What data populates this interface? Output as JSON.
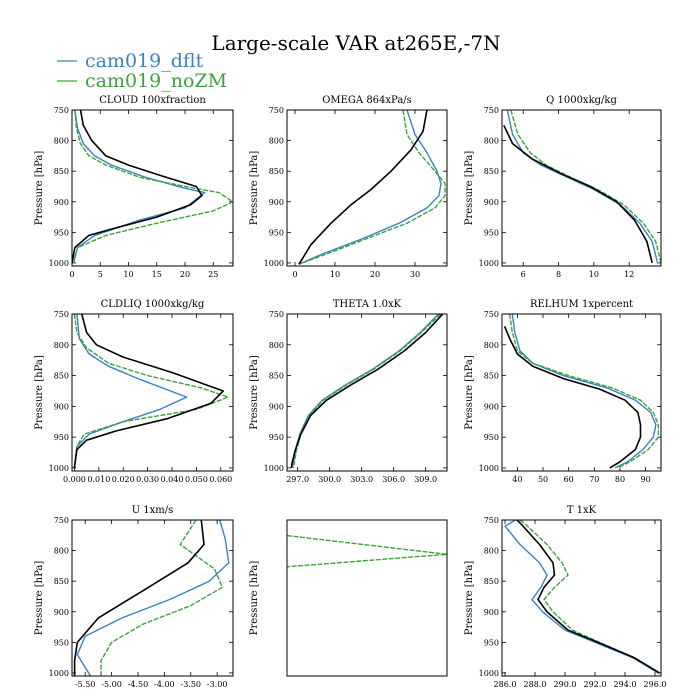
{
  "title": "Large-scale VAR at265E,-7N",
  "legend": [
    {
      "label": "cam019_dflt",
      "color": "#3a82c4"
    },
    {
      "label": "cam019_noZM",
      "color": "#3ca33c"
    }
  ],
  "reference_color": "#000000",
  "chart_data": [
    {
      "type": "line",
      "title": "CLOUD  100xfraction",
      "ylabel": "Pressure [hPa]",
      "xlim": [
        0,
        28.5
      ],
      "ylim": [
        1005,
        750
      ],
      "xticks": [
        0,
        5,
        10,
        15,
        20,
        25
      ],
      "xticklabels": [
        "0",
        "5",
        "10",
        "15",
        "20",
        "25"
      ],
      "yticks": [
        750,
        800,
        850,
        900,
        950,
        1000
      ],
      "yticklabels": [
        "750",
        "800",
        "850",
        "900",
        "950",
        "1000"
      ],
      "series": [
        {
          "name": "cam019_dflt",
          "x": [
            0.5,
            1,
            2,
            4,
            7,
            13,
            20,
            23.5,
            20,
            12,
            4,
            1,
            0.5,
            0.3
          ],
          "y": [
            750,
            780,
            805,
            825,
            840,
            860,
            878,
            885,
            910,
            930,
            955,
            975,
            990,
            1000
          ]
        },
        {
          "name": "cam019_noZM",
          "x": [
            0.5,
            0.8,
            1.5,
            3,
            6,
            12,
            20,
            26,
            28.5,
            25,
            15,
            6,
            1,
            0.3
          ],
          "y": [
            750,
            780,
            805,
            825,
            840,
            860,
            875,
            885,
            900,
            915,
            935,
            955,
            975,
            1000
          ]
        },
        {
          "x": [
            1.5,
            2,
            3.5,
            6,
            10,
            16,
            22,
            23,
            21,
            15,
            8,
            3,
            0.5,
            0
          ],
          "y": [
            750,
            775,
            800,
            825,
            840,
            858,
            875,
            890,
            905,
            925,
            942,
            955,
            975,
            1000
          ]
        }
      ]
    },
    {
      "type": "line",
      "title": "OMEGA  864xPa/s",
      "ylabel": "Pressure [hPa]",
      "xlim": [
        -2,
        38
      ],
      "ylim": [
        1005,
        750
      ],
      "xticks": [
        0,
        10,
        20,
        30
      ],
      "xticklabels": [
        "0",
        "10",
        "20",
        "30"
      ],
      "yticks": [
        750,
        800,
        850,
        900,
        950,
        1000
      ],
      "yticklabels": [
        "750",
        "800",
        "850",
        "900",
        "950",
        "1000"
      ],
      "series": [
        {
          "name": "cam019_dflt",
          "x": [
            28,
            30,
            33,
            35.5,
            36.5,
            36,
            33,
            26,
            17,
            7,
            1
          ],
          "y": [
            750,
            790,
            820,
            850,
            870,
            890,
            910,
            935,
            960,
            985,
            1002
          ]
        },
        {
          "name": "cam019_noZM",
          "x": [
            27,
            28,
            31,
            35,
            37.5,
            37.5,
            35,
            28,
            18,
            8,
            1
          ],
          "y": [
            750,
            790,
            820,
            850,
            870,
            890,
            910,
            935,
            960,
            985,
            1002
          ]
        },
        {
          "x": [
            33,
            32,
            29,
            24,
            19,
            14,
            9,
            4,
            1
          ],
          "y": [
            750,
            785,
            815,
            850,
            880,
            905,
            935,
            970,
            1002
          ]
        }
      ]
    },
    {
      "type": "line",
      "title": "Q  1000xkg/kg",
      "ylabel": "Pressure [hPa]",
      "xlim": [
        4.8,
        13.8
      ],
      "ylim": [
        1005,
        750
      ],
      "xticks": [
        6,
        8,
        10,
        12
      ],
      "xticklabels": [
        "6",
        "8",
        "10",
        "12"
      ],
      "yticks": [
        750,
        800,
        850,
        900,
        950,
        1000
      ],
      "yticklabels": [
        "750",
        "800",
        "850",
        "900",
        "950",
        "1000"
      ],
      "series": [
        {
          "name": "cam019_dflt",
          "x": [
            5.1,
            5.4,
            6,
            7,
            8.5,
            10,
            11.5,
            12.6,
            13.3,
            13.6
          ],
          "y": [
            750,
            790,
            820,
            840,
            860,
            880,
            905,
            935,
            965,
            1000
          ]
        },
        {
          "name": "cam019_noZM",
          "x": [
            5.3,
            5.7,
            6.4,
            7.3,
            8.7,
            10.2,
            11.7,
            12.8,
            13.5,
            13.8
          ],
          "y": [
            750,
            790,
            820,
            840,
            860,
            880,
            905,
            935,
            965,
            1000
          ]
        },
        {
          "x": [
            4.9,
            5.4,
            6.5,
            8.2,
            9.8,
            11.3,
            12.3,
            13,
            13.3
          ],
          "y": [
            775,
            805,
            830,
            855,
            875,
            900,
            930,
            965,
            1000
          ]
        }
      ]
    },
    {
      "type": "line",
      "title": "CLDLIQ  1000xkg/kg",
      "ylabel": "Pressure [hPa]",
      "xlim": [
        -0.001,
        0.065
      ],
      "ylim": [
        1005,
        750
      ],
      "xticks": [
        0,
        0.01,
        0.02,
        0.03,
        0.04,
        0.05,
        0.06
      ],
      "xticklabels": [
        "0.000",
        "0.010",
        "0.020",
        "0.030",
        "0.040",
        "0.050",
        "0.060"
      ],
      "yticks": [
        750,
        800,
        850,
        900,
        950,
        1000
      ],
      "yticklabels": [
        "750",
        "800",
        "850",
        "900",
        "950",
        "1000"
      ],
      "series": [
        {
          "name": "cam019_dflt",
          "x": [
            0.001,
            0.002,
            0.006,
            0.014,
            0.026,
            0.046,
            0.035,
            0.02,
            0.006,
            0.001,
            0
          ],
          "y": [
            750,
            790,
            815,
            835,
            855,
            885,
            905,
            925,
            945,
            965,
            1000
          ]
        },
        {
          "name": "cam019_noZM",
          "x": [
            0,
            0.001,
            0.005,
            0.014,
            0.03,
            0.052,
            0.063,
            0.05,
            0.02,
            0.004,
            0.001,
            0
          ],
          "y": [
            750,
            780,
            805,
            830,
            850,
            870,
            885,
            905,
            925,
            945,
            965,
            1000
          ]
        },
        {
          "x": [
            0.003,
            0.005,
            0.009,
            0.02,
            0.04,
            0.061,
            0.056,
            0.038,
            0.017,
            0.005,
            0.001,
            0
          ],
          "y": [
            750,
            780,
            800,
            820,
            845,
            875,
            895,
            920,
            940,
            955,
            970,
            1000
          ]
        }
      ]
    },
    {
      "type": "line",
      "title": "THETA  1.0xK",
      "ylabel": "Pressure [hPa]",
      "xlim": [
        296,
        311
      ],
      "ylim": [
        1005,
        750
      ],
      "xticks": [
        297,
        300,
        303,
        306,
        309
      ],
      "xticklabels": [
        "297.0",
        "300.0",
        "303.0",
        "306.0",
        "309.0"
      ],
      "yticks": [
        750,
        800,
        850,
        900,
        950,
        1000
      ],
      "yticklabels": [
        "750",
        "800",
        "850",
        "900",
        "950",
        "1000"
      ],
      "series": [
        {
          "name": "cam019_dflt",
          "x": [
            310.2,
            308.5,
            306.5,
            304,
            301.5,
            299.3,
            298,
            297.2,
            296.8,
            296.6,
            296.5
          ],
          "y": [
            750,
            780,
            810,
            840,
            865,
            890,
            915,
            945,
            970,
            990,
            1000
          ]
        },
        {
          "name": "cam019_noZM",
          "x": [
            310.4,
            308.6,
            306.6,
            304.1,
            301.6,
            299.4,
            298.1,
            297.3,
            296.9,
            296.7,
            296.6
          ],
          "y": [
            750,
            780,
            810,
            840,
            865,
            890,
            915,
            945,
            970,
            990,
            1000
          ]
        },
        {
          "x": [
            310.6,
            309,
            307,
            304.5,
            302,
            299.7,
            298.2,
            297.3,
            296.8,
            296.5,
            296.4
          ],
          "y": [
            750,
            780,
            810,
            840,
            865,
            890,
            915,
            945,
            970,
            990,
            1000
          ]
        }
      ]
    },
    {
      "type": "line",
      "title": "RELHUM  1xpercent",
      "ylabel": "Pressure [hPa]",
      "xlim": [
        34,
        96
      ],
      "ylim": [
        1005,
        750
      ],
      "xticks": [
        40,
        50,
        60,
        70,
        80,
        90
      ],
      "xticklabels": [
        "40",
        "50",
        "60",
        "70",
        "80",
        "90"
      ],
      "yticks": [
        750,
        800,
        850,
        900,
        950,
        1000
      ],
      "yticklabels": [
        "750",
        "800",
        "850",
        "900",
        "950",
        "1000"
      ],
      "series": [
        {
          "name": "cam019_dflt",
          "x": [
            38,
            39,
            41,
            46,
            58,
            75,
            86,
            92,
            94,
            93,
            89,
            83,
            78
          ],
          "y": [
            750,
            780,
            810,
            830,
            850,
            870,
            890,
            910,
            930,
            950,
            970,
            990,
            1000
          ]
        },
        {
          "name": "cam019_noZM",
          "x": [
            37,
            38,
            40,
            46,
            60,
            77,
            88,
            93,
            95,
            95,
            91,
            84,
            79
          ],
          "y": [
            750,
            780,
            810,
            830,
            850,
            870,
            890,
            910,
            930,
            950,
            970,
            990,
            1000
          ]
        },
        {
          "x": [
            35,
            37,
            40,
            46,
            58,
            72,
            82,
            87,
            88,
            88,
            86,
            80,
            76
          ],
          "y": [
            770,
            790,
            815,
            835,
            855,
            872,
            890,
            910,
            930,
            950,
            970,
            990,
            1000
          ]
        }
      ]
    },
    {
      "type": "line",
      "title": "U  1xm/s",
      "ylabel": "Pressure [hPa]",
      "xlim": [
        -5.75,
        -2.7
      ],
      "ylim": [
        1005,
        750
      ],
      "xticks": [
        -5.5,
        -5,
        -4.5,
        -4,
        -3.5,
        -3
      ],
      "xticklabels": [
        "-5.50",
        "-5.00",
        "-4.50",
        "-4.00",
        "-3.50",
        "-3.00"
      ],
      "yticks": [
        750,
        800,
        850,
        900,
        950,
        1000
      ],
      "yticklabels": [
        "750",
        "800",
        "850",
        "900",
        "950",
        "1000"
      ],
      "series": [
        {
          "name": "cam019_dflt",
          "x": [
            -2.95,
            -2.85,
            -2.78,
            -3.15,
            -3.9,
            -4.8,
            -5.5,
            -5.65,
            -5.4
          ],
          "y": [
            750,
            780,
            820,
            850,
            880,
            910,
            940,
            970,
            1005
          ]
        },
        {
          "name": "cam019_noZM",
          "x": [
            -3.4,
            -3.7,
            -3.05,
            -2.9,
            -3.5,
            -4.4,
            -5.0,
            -5.2,
            -5.2
          ],
          "y": [
            750,
            790,
            830,
            860,
            890,
            920,
            950,
            980,
            1005
          ]
        },
        {
          "x": [
            -3.3,
            -3.25,
            -3.55,
            -4.3,
            -5.25,
            -5.65,
            -5.7,
            -5.7
          ],
          "y": [
            750,
            790,
            820,
            860,
            910,
            950,
            980,
            1005
          ]
        }
      ]
    },
    {
      "type": "line",
      "ylabel": "Pressure [hPa]",
      "ylim": [
        1000,
        750
      ],
      "series": [
        {
          "name": "cam019_noZM",
          "x": [
            0,
            1,
            0
          ],
          "y": [
            775,
            805,
            825
          ]
        }
      ]
    },
    {
      "type": "line",
      "title": "T  1xK",
      "ylabel": "Pressure [hPa]",
      "xlim": [
        285.8,
        296.4
      ],
      "ylim": [
        1005,
        750
      ],
      "xticks": [
        286,
        288,
        290,
        292,
        294,
        296
      ],
      "xticklabels": [
        "286.0",
        "288.0",
        "290.0",
        "292.0",
        "294.0",
        "296.0"
      ],
      "yticks": [
        750,
        800,
        850,
        900,
        950,
        1000
      ],
      "yticklabels": [
        "750",
        "800",
        "850",
        "900",
        "950",
        "1000"
      ],
      "series": [
        {
          "name": "cam019_dflt",
          "x": [
            286.7,
            286,
            287,
            288.3,
            288.8,
            288.4,
            287.8,
            288.5,
            290,
            292,
            294.5,
            296.2
          ],
          "y": [
            750,
            760,
            790,
            820,
            840,
            860,
            880,
            900,
            930,
            950,
            975,
            1000
          ]
        },
        {
          "name": "cam019_noZM",
          "x": [
            287,
            287.5,
            288.8,
            289.8,
            290.2,
            289.3,
            288.6,
            289.2,
            290.5,
            292.3,
            294.6,
            296.3
          ],
          "y": [
            750,
            760,
            790,
            820,
            840,
            860,
            880,
            900,
            930,
            950,
            975,
            1000
          ]
        },
        {
          "x": [
            286.8,
            287.2,
            288.3,
            289.2,
            289.3,
            288.6,
            288.2,
            288.8,
            290.2,
            292.2,
            294.6,
            296.3
          ],
          "y": [
            750,
            760,
            790,
            820,
            840,
            860,
            880,
            900,
            930,
            950,
            975,
            1000
          ]
        }
      ]
    }
  ]
}
